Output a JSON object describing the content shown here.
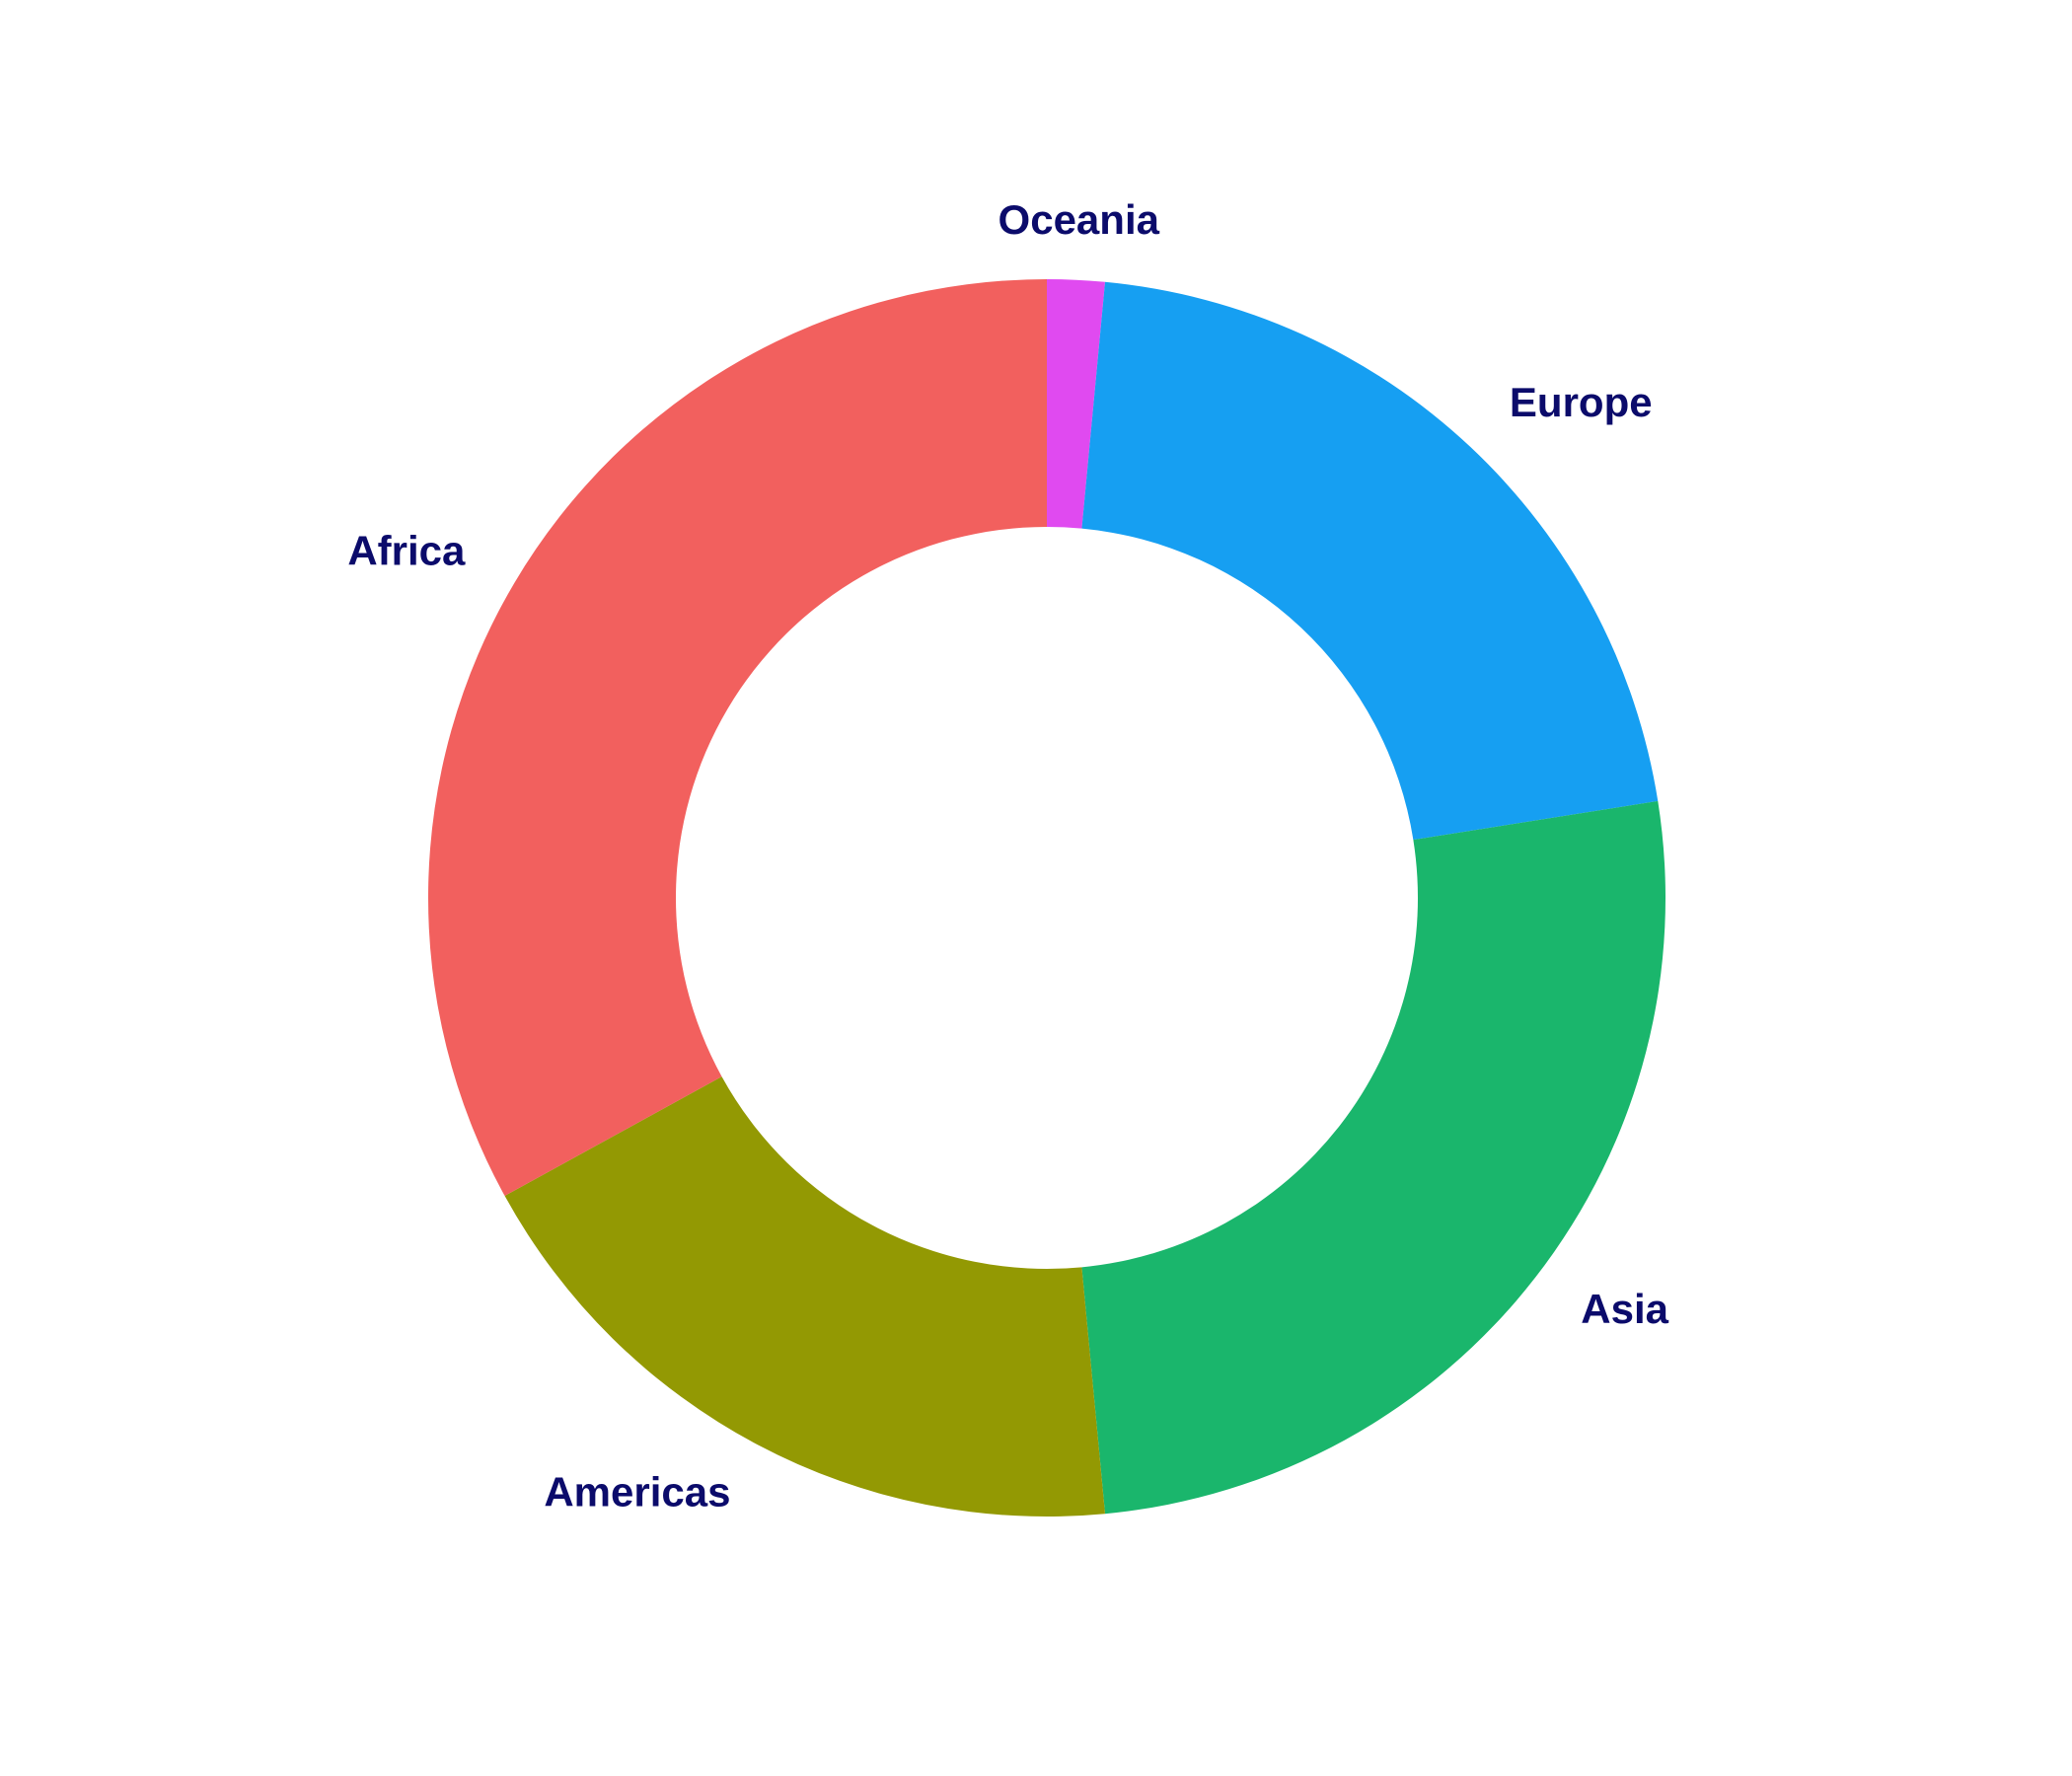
{
  "chart_data": {
    "type": "pie",
    "donut": true,
    "title": "",
    "label_color": "#0b0b6b",
    "slices": [
      {
        "label": "Oceania",
        "value": 1.5,
        "color": "#e04af0"
      },
      {
        "label": "Europe",
        "value": 21.0,
        "color": "#169ff2"
      },
      {
        "label": "Asia",
        "value": 26.0,
        "color": "#1ab66c"
      },
      {
        "label": "Americas",
        "value": 18.5,
        "color": "#939903"
      },
      {
        "label": "Africa",
        "value": 33.0,
        "color": "#f2605e"
      }
    ]
  }
}
